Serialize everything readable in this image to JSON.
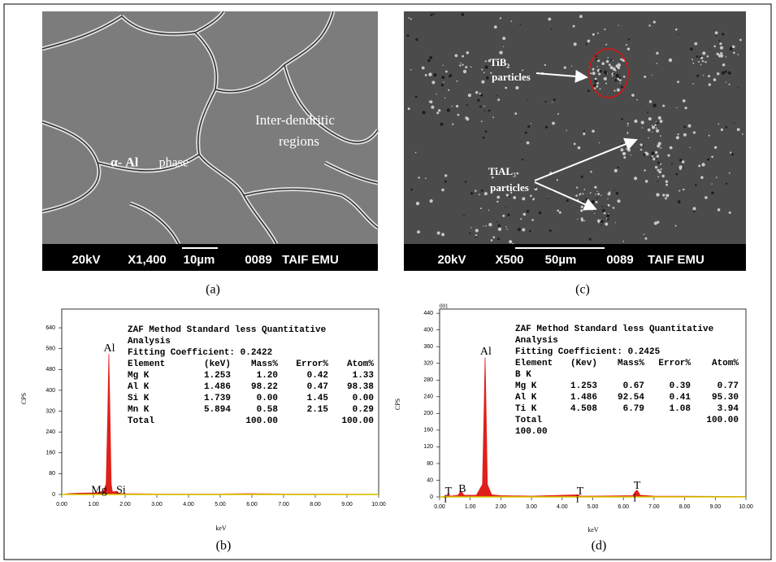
{
  "images": [
    {
      "caption": "(a)",
      "scale_bar": [
        "20kV",
        "X1,400",
        "10µm",
        "0089",
        "TAIF EMU"
      ],
      "labels": [
        "Inter-dendritic",
        "regions",
        "α- Al",
        "phase"
      ]
    },
    {
      "caption": "(c)",
      "scale_bar": [
        "20kV",
        "X500",
        "50µm",
        "0089",
        "TAIF EMU"
      ],
      "labels": [
        "TiB₂",
        "particles",
        "TiAL₃",
        "particles"
      ]
    }
  ],
  "chart_data": [
    {
      "type": "area",
      "caption": "(b)",
      "xlabel": "keV",
      "ylabel": "CPS",
      "x": [
        0,
        0.2,
        0.5,
        1.0,
        1.2,
        1.253,
        1.3,
        1.4,
        1.45,
        1.486,
        1.52,
        1.56,
        1.6,
        1.739,
        1.8,
        2.0,
        3.0,
        5.0,
        5.894,
        7.0,
        10.0
      ],
      "series": [
        {
          "color": "#e0201b",
          "values": [
            0,
            3,
            5,
            6,
            8,
            12,
            8,
            40,
            300,
            540,
            320,
            40,
            10,
            12,
            4,
            3,
            2,
            2,
            3,
            2,
            1
          ]
        }
      ],
      "xlim": [
        0,
        10
      ],
      "ylim": [
        0,
        712
      ],
      "xticks": [
        {
          "value": 0,
          "label": "0.00"
        },
        {
          "value": 1,
          "label": "1.00"
        },
        {
          "value": 2,
          "label": "2.00"
        },
        {
          "value": 3,
          "label": "3.00"
        },
        {
          "value": 4,
          "label": "4.00"
        },
        {
          "value": 5,
          "label": "5.00"
        },
        {
          "value": 6,
          "label": "6.00"
        },
        {
          "value": 7,
          "label": "7.00"
        },
        {
          "value": 8,
          "label": "8.00"
        },
        {
          "value": 9,
          "label": "9.00"
        },
        {
          "value": 10,
          "label": "10.00"
        }
      ],
      "yticks": [
        0,
        80,
        160,
        240,
        320,
        400,
        480,
        560,
        640
      ],
      "annotations": [
        {
          "text": "Al",
          "x": 1.5,
          "y": 560
        },
        {
          "text": "Mg",
          "x": 1.18,
          "y": 15
        },
        {
          "text": "Si",
          "x": 1.87,
          "y": 15
        }
      ],
      "table": {
        "lines": [
          "ZAF Method Standard less Quantitative",
          "Analysis",
          "Fitting Coefficient: 0.2422"
        ],
        "header": [
          "Element",
          "(keV)",
          "Mass%",
          "Error%",
          "Atom%"
        ],
        "rows": [
          [
            "Mg K",
            "1.253",
            "1.20",
            "0.42",
            "1.33"
          ],
          [
            "Al K",
            "1.486",
            "98.22",
            "0.47",
            "98.38"
          ],
          [
            "Si K",
            "1.739",
            "0.00",
            "1.45",
            "0.00"
          ],
          [
            "Mn K",
            "5.894",
            "0.58",
            "2.15",
            "0.29"
          ]
        ],
        "total": [
          "Total",
          "100.00",
          "100.00"
        ]
      }
    },
    {
      "type": "area",
      "caption": "(d)",
      "xlabel": "keV",
      "ylabel": "CPS",
      "corner_label": "001",
      "x": [
        0,
        0.2,
        0.28,
        0.35,
        0.6,
        0.7,
        0.8,
        1.2,
        1.4,
        1.45,
        1.486,
        1.52,
        1.56,
        1.7,
        2.0,
        3.0,
        4.508,
        4.6,
        5.0,
        6.3,
        6.4,
        6.45,
        6.55,
        7.0,
        10.0
      ],
      "series": [
        {
          "color": "#e0201b",
          "values": [
            0,
            2,
            6,
            2,
            4,
            14,
            4,
            4,
            30,
            200,
            334,
            200,
            30,
            5,
            3,
            2,
            5,
            2,
            2,
            3,
            14,
            16,
            4,
            2,
            1
          ]
        }
      ],
      "xlim": [
        0,
        10
      ],
      "ylim": [
        0,
        450
      ],
      "xticks": [
        {
          "value": 0,
          "label": "0.00"
        },
        {
          "value": 1,
          "label": "1.00"
        },
        {
          "value": 2,
          "label": "2.00"
        },
        {
          "value": 3,
          "label": "3.00"
        },
        {
          "value": 4,
          "label": "4.00"
        },
        {
          "value": 5,
          "label": "5.00"
        },
        {
          "value": 6,
          "label": "6.00"
        },
        {
          "value": 7,
          "label": "7.00"
        },
        {
          "value": 8,
          "label": "8.00"
        },
        {
          "value": 9,
          "label": "9.00"
        },
        {
          "value": 10,
          "label": "10.00"
        }
      ],
      "yticks": [
        0,
        40,
        80,
        120,
        160,
        200,
        240,
        280,
        320,
        360,
        400,
        440
      ],
      "annotations": [
        {
          "text": "Al",
          "x": 1.51,
          "y": 347
        },
        {
          "text": "T",
          "x": 0.29,
          "y": 12
        },
        {
          "text": "i",
          "x": 0.19,
          "y": -6
        },
        {
          "text": "B",
          "x": 0.74,
          "y": 18
        },
        {
          "text": "T",
          "x": 4.59,
          "y": 12
        },
        {
          "text": "i",
          "x": 4.5,
          "y": -6
        },
        {
          "text": "T",
          "x": 6.45,
          "y": 26
        },
        {
          "text": "i",
          "x": 6.37,
          "y": -4
        }
      ],
      "table": {
        "lines": [
          "ZAF Method Standard less Quantitative",
          "Analysis",
          "Fitting Coefficient: 0.2425"
        ],
        "header": [
          "Element",
          "(Kev)",
          "Mass%",
          "Error%",
          "Atom%"
        ],
        "rows": [
          [
            "B K"
          ],
          [
            "Mg K",
            "1.253",
            "0.67",
            "0.39",
            "0.77"
          ],
          [
            "Al K",
            "1.486",
            "92.54",
            "0.41",
            "95.30"
          ],
          [
            "Ti K",
            "4.508",
            "6.79",
            "1.08",
            "3.94"
          ]
        ],
        "total": [
          "Total",
          "100.00"
        ],
        "footer": "100.00"
      }
    }
  ]
}
